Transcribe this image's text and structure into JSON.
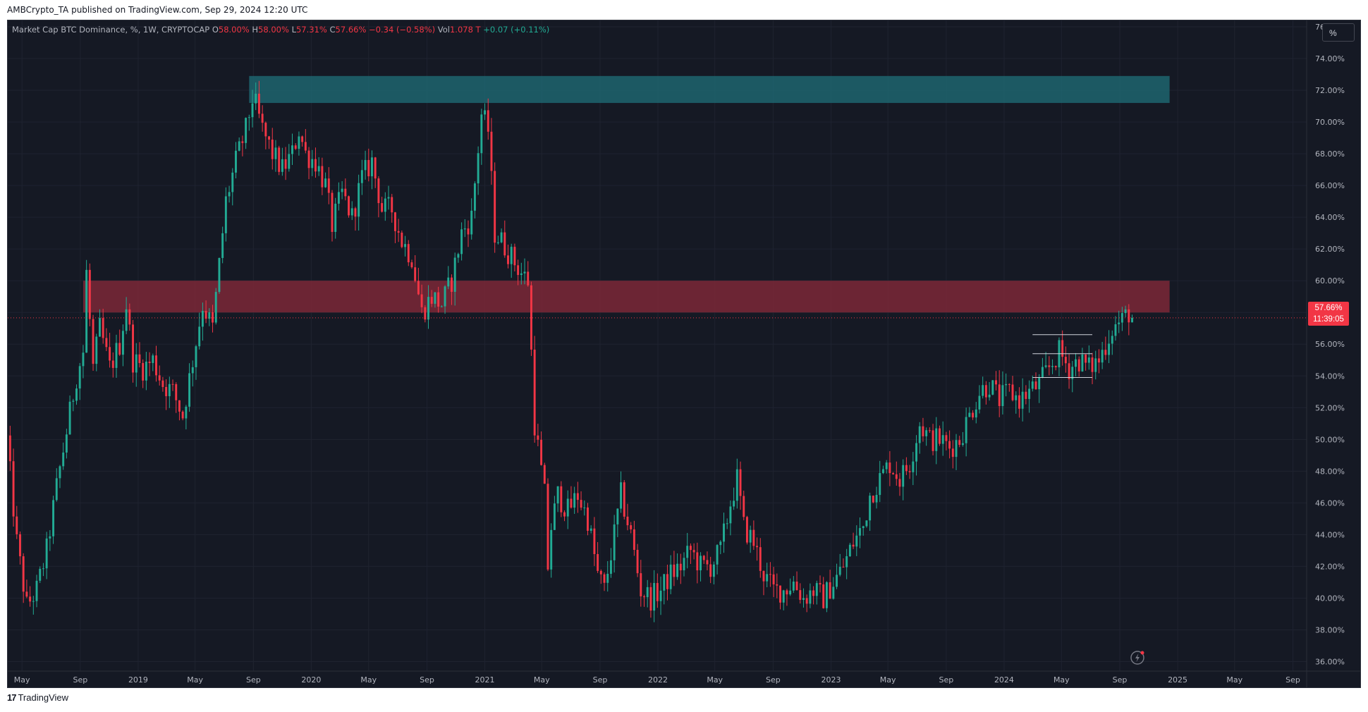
{
  "header": {
    "publish_line": "AMBCrypto_TA published on TradingView.com, Sep 29, 2024 12:20 UTC"
  },
  "legend": {
    "symbol": "Market Cap BTC Dominance, %, 1W, CRYPTOCAP",
    "o_label": "O",
    "o_value": "58.00%",
    "h_label": "H",
    "h_value": "58.00%",
    "l_label": "L",
    "l_value": "57.31%",
    "c_label": "C",
    "c_value": "57.66%",
    "change": "−0.34 (−0.58%)",
    "vol_label": "Vol",
    "vol_value": "1.078 T",
    "vol_change": "+0.07 (+0.11%)"
  },
  "scale_mode_label": "%",
  "price_badge": {
    "price": "57.66%",
    "countdown": "11:39:05",
    "color": "#f23645"
  },
  "footer": {
    "brand_logo": "17",
    "brand": "TradingView"
  },
  "colors": {
    "up": "#22ab94",
    "down": "#f23645",
    "background": "#151924",
    "resistance_zone": "#1f6f78",
    "supply_zone": "#8a2a3a"
  },
  "icons": {
    "replay": "lightning-icon"
  },
  "chart_data": {
    "type": "candlestick",
    "title": "Market Cap BTC Dominance, %, 1W, CRYPTOCAP",
    "y_unit": "%",
    "ylim": [
      35.4,
      76.4
    ],
    "xlim": [
      "2018-04-01",
      "2025-09-30"
    ],
    "y_ticks": [
      "76.00%",
      "74.00%",
      "72.00%",
      "70.00%",
      "68.00%",
      "66.00%",
      "64.00%",
      "62.00%",
      "60.00%",
      "58.00%",
      "56.00%",
      "54.00%",
      "52.00%",
      "50.00%",
      "48.00%",
      "46.00%",
      "44.00%",
      "42.00%",
      "40.00%",
      "38.00%",
      "36.00%"
    ],
    "x_ticks": [
      {
        "label": "May",
        "date": "2018-05-01"
      },
      {
        "label": "Sep",
        "date": "2018-09-01"
      },
      {
        "label": "2019",
        "date": "2019-01-01"
      },
      {
        "label": "May",
        "date": "2019-05-01"
      },
      {
        "label": "Sep",
        "date": "2019-09-01"
      },
      {
        "label": "2020",
        "date": "2020-01-01"
      },
      {
        "label": "May",
        "date": "2020-05-01"
      },
      {
        "label": "Sep",
        "date": "2020-09-01"
      },
      {
        "label": "2021",
        "date": "2021-01-01"
      },
      {
        "label": "May",
        "date": "2021-05-01"
      },
      {
        "label": "Sep",
        "date": "2021-09-01"
      },
      {
        "label": "2022",
        "date": "2022-01-01"
      },
      {
        "label": "May",
        "date": "2022-05-01"
      },
      {
        "label": "Sep",
        "date": "2022-09-01"
      },
      {
        "label": "2023",
        "date": "2023-01-01"
      },
      {
        "label": "May",
        "date": "2023-05-01"
      },
      {
        "label": "Sep",
        "date": "2023-09-01"
      },
      {
        "label": "2024",
        "date": "2024-01-01"
      },
      {
        "label": "May",
        "date": "2024-05-01"
      },
      {
        "label": "Sep",
        "date": "2024-09-01"
      },
      {
        "label": "2025",
        "date": "2025-01-01"
      },
      {
        "label": "May",
        "date": "2025-05-01"
      },
      {
        "label": "Sep",
        "date": "2025-09-01"
      }
    ],
    "close_path": [
      [
        "2018-03-30",
        50.0
      ],
      [
        "2018-04-20",
        43.5
      ],
      [
        "2018-05-11",
        39.5
      ],
      [
        "2018-06-01",
        40.5
      ],
      [
        "2018-06-22",
        43.0
      ],
      [
        "2018-07-13",
        47.0
      ],
      [
        "2018-08-03",
        50.5
      ],
      [
        "2018-08-24",
        54.0
      ],
      [
        "2018-09-07",
        55.5
      ],
      [
        "2018-09-14",
        60.5
      ],
      [
        "2018-09-28",
        54.5
      ],
      [
        "2018-10-12",
        57.0
      ],
      [
        "2018-11-02",
        54.5
      ],
      [
        "2018-11-23",
        56.0
      ],
      [
        "2018-12-07",
        58.5
      ],
      [
        "2018-12-21",
        55.0
      ],
      [
        "2019-01-11",
        54.5
      ],
      [
        "2019-02-01",
        55.0
      ],
      [
        "2019-02-22",
        53.5
      ],
      [
        "2019-03-15",
        53.0
      ],
      [
        "2019-04-05",
        51.5
      ],
      [
        "2019-04-26",
        55.0
      ],
      [
        "2019-05-17",
        58.5
      ],
      [
        "2019-06-07",
        57.0
      ],
      [
        "2019-06-21",
        61.0
      ],
      [
        "2019-07-05",
        65.0
      ],
      [
        "2019-07-26",
        67.5
      ],
      [
        "2019-08-16",
        69.5
      ],
      [
        "2019-08-30",
        71.5
      ],
      [
        "2019-09-06",
        71.0
      ],
      [
        "2019-09-20",
        69.5
      ],
      [
        "2019-10-11",
        68.0
      ],
      [
        "2019-11-01",
        67.0
      ],
      [
        "2019-11-22",
        68.0
      ],
      [
        "2019-12-06",
        69.5
      ],
      [
        "2019-12-20",
        68.0
      ],
      [
        "2020-01-10",
        67.5
      ],
      [
        "2020-01-31",
        66.0
      ],
      [
        "2020-02-14",
        63.5
      ],
      [
        "2020-03-06",
        65.5
      ],
      [
        "2020-03-27",
        64.0
      ],
      [
        "2020-04-17",
        66.5
      ],
      [
        "2020-05-08",
        67.5
      ],
      [
        "2020-05-29",
        64.5
      ],
      [
        "2020-06-19",
        64.5
      ],
      [
        "2020-07-10",
        62.5
      ],
      [
        "2020-07-31",
        61.5
      ],
      [
        "2020-08-21",
        58.0
      ],
      [
        "2020-09-11",
        59.0
      ],
      [
        "2020-10-02",
        58.5
      ],
      [
        "2020-10-23",
        60.0
      ],
      [
        "2020-11-13",
        63.0
      ],
      [
        "2020-12-04",
        64.0
      ],
      [
        "2020-12-25",
        70.5
      ],
      [
        "2021-01-08",
        69.5
      ],
      [
        "2021-01-22",
        63.0
      ],
      [
        "2021-02-05",
        62.5
      ],
      [
        "2021-02-26",
        61.5
      ],
      [
        "2021-03-19",
        60.5
      ],
      [
        "2021-04-02",
        60.0
      ],
      [
        "2021-04-16",
        51.0
      ],
      [
        "2021-05-07",
        46.5
      ],
      [
        "2021-05-14",
        42.0
      ],
      [
        "2021-05-21",
        44.5
      ],
      [
        "2021-06-04",
        46.5
      ],
      [
        "2021-06-25",
        45.5
      ],
      [
        "2021-07-16",
        46.5
      ],
      [
        "2021-08-06",
        45.0
      ],
      [
        "2021-08-27",
        41.5
      ],
      [
        "2021-09-10",
        40.5
      ],
      [
        "2021-10-01",
        44.0
      ],
      [
        "2021-10-15",
        46.5
      ],
      [
        "2021-11-05",
        44.0
      ],
      [
        "2021-11-26",
        40.5
      ],
      [
        "2021-12-17",
        40.0
      ],
      [
        "2022-01-07",
        40.5
      ],
      [
        "2022-01-28",
        41.5
      ],
      [
        "2022-02-18",
        42.0
      ],
      [
        "2022-03-11",
        43.0
      ],
      [
        "2022-04-01",
        42.0
      ],
      [
        "2022-04-22",
        42.0
      ],
      [
        "2022-05-13",
        43.0
      ],
      [
        "2022-06-03",
        46.0
      ],
      [
        "2022-06-17",
        47.5
      ],
      [
        "2022-07-01",
        44.5
      ],
      [
        "2022-07-22",
        43.5
      ],
      [
        "2022-08-12",
        41.5
      ],
      [
        "2022-09-02",
        40.5
      ],
      [
        "2022-09-23",
        40.5
      ],
      [
        "2022-10-14",
        41.0
      ],
      [
        "2022-11-04",
        40.0
      ],
      [
        "2022-11-25",
        40.5
      ],
      [
        "2022-12-16",
        40.0
      ],
      [
        "2023-01-06",
        41.0
      ],
      [
        "2023-01-27",
        42.0
      ],
      [
        "2023-02-17",
        43.5
      ],
      [
        "2023-03-10",
        44.5
      ],
      [
        "2023-03-24",
        46.5
      ],
      [
        "2023-04-14",
        47.5
      ],
      [
        "2023-05-05",
        48.5
      ],
      [
        "2023-05-26",
        47.5
      ],
      [
        "2023-06-16",
        48.5
      ],
      [
        "2023-07-07",
        51.0
      ],
      [
        "2023-07-28",
        50.0
      ],
      [
        "2023-08-18",
        50.0
      ],
      [
        "2023-09-08",
        49.5
      ],
      [
        "2023-09-29",
        50.0
      ],
      [
        "2023-10-20",
        51.5
      ],
      [
        "2023-11-10",
        53.0
      ],
      [
        "2023-12-01",
        53.5
      ],
      [
        "2023-12-22",
        52.5
      ],
      [
        "2024-01-12",
        53.0
      ],
      [
        "2024-02-02",
        52.5
      ],
      [
        "2024-02-23",
        53.0
      ],
      [
        "2024-03-15",
        53.5
      ],
      [
        "2024-04-05",
        54.5
      ],
      [
        "2024-04-26",
        55.5
      ],
      [
        "2024-05-17",
        54.5
      ],
      [
        "2024-06-07",
        55.0
      ],
      [
        "2024-06-28",
        54.5
      ],
      [
        "2024-07-19",
        55.0
      ],
      [
        "2024-08-02",
        56.0
      ],
      [
        "2024-08-16",
        57.0
      ],
      [
        "2024-09-06",
        57.5
      ],
      [
        "2024-09-20",
        58.0
      ],
      [
        "2024-09-27",
        57.66
      ]
    ],
    "zones": [
      {
        "name": "resistance-zone",
        "y1": 71.2,
        "y2": 72.9,
        "x_from": "2019-08-23",
        "x_to": "2024-12-15",
        "color": "#1f6f78"
      },
      {
        "name": "supply-zone",
        "y1": 58.0,
        "y2": 60.0,
        "x_from": "2018-09-07",
        "x_to": "2024-12-15",
        "color": "#8a2a3a"
      }
    ],
    "range_lines": [
      {
        "y": 56.6,
        "x_from": "2024-03-01",
        "x_to": "2024-07-05"
      },
      {
        "y": 55.4,
        "x_from": "2024-03-01",
        "x_to": "2024-07-05"
      },
      {
        "y": 53.9,
        "x_from": "2024-03-01",
        "x_to": "2024-07-05"
      }
    ],
    "last_close": 57.66,
    "grid": true,
    "legend_placement": "top-left"
  }
}
